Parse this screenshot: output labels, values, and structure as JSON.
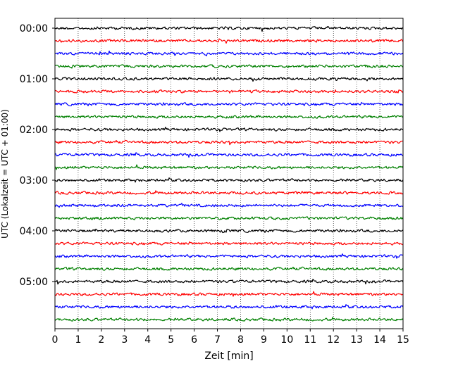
{
  "chart_data": {
    "type": "line",
    "subtype": "helicorder",
    "title": "",
    "xlabel": "Zeit  [min]",
    "ylabel": "UTC (Lokalzeit = UTC + 01:00)",
    "xlim": [
      0,
      15
    ],
    "x_ticks": [
      "0",
      "1",
      "2",
      "3",
      "4",
      "5",
      "6",
      "7",
      "8",
      "9",
      "10",
      "11",
      "12",
      "13",
      "14",
      "15"
    ],
    "y_ticks": [
      "00:00",
      "01:00",
      "02:00",
      "03:00",
      "04:00",
      "05:00"
    ],
    "traces_per_hour": 4,
    "trace_minutes": 15,
    "trace_count": 24,
    "trace_colors": [
      "#000000",
      "#ff0000",
      "#0000ff",
      "#008000"
    ],
    "vertical_grid": "dotted",
    "legend": "none",
    "signal": "low-amplitude seismic noise on all traces"
  }
}
